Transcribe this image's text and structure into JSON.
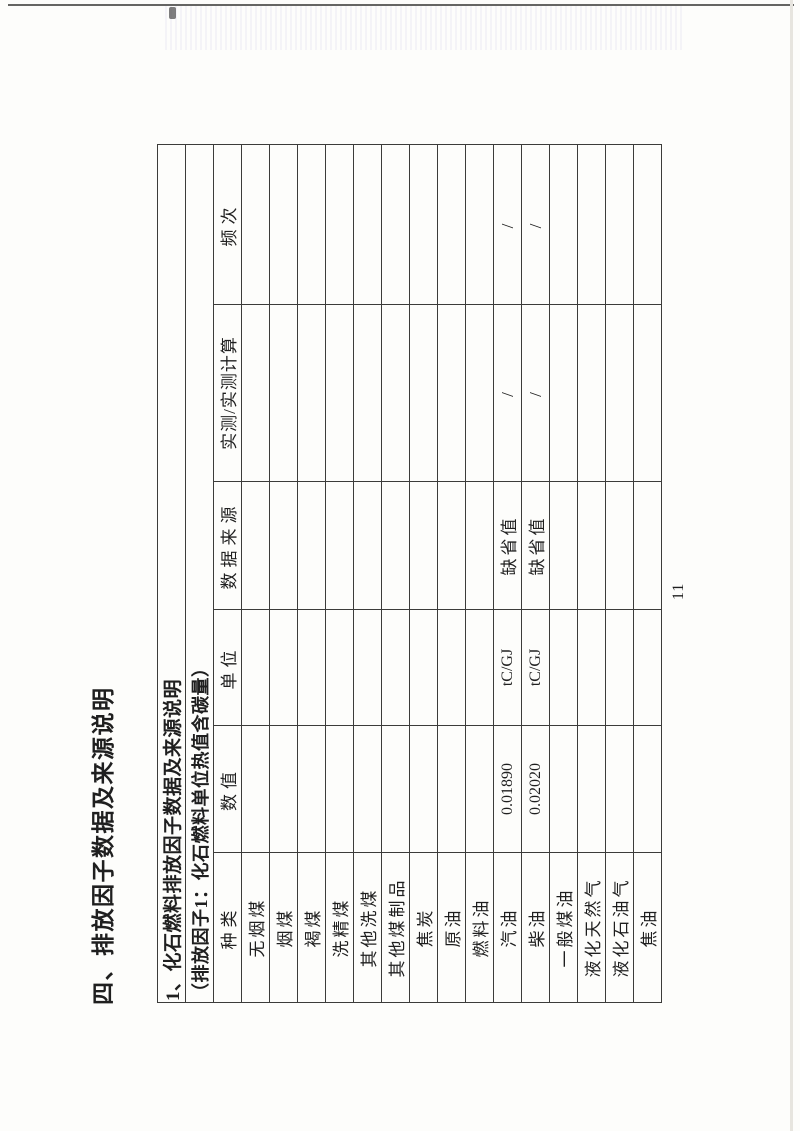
{
  "document": {
    "section_title": "四、排放因子数据及来源说明",
    "page_number": "11",
    "table": {
      "caption_line1": "1、化石燃料排放因子数据及来源说明",
      "caption_line2": "（排放因子1：化石燃料单位热值含碳量）",
      "headers": [
        "种类",
        "数值",
        "单位",
        "数据来源",
        "实测/实测计算",
        "频次"
      ],
      "rows": [
        {
          "type": "无烟煤",
          "value": "",
          "unit": "",
          "source": "",
          "measured": "",
          "frequency": ""
        },
        {
          "type": "烟煤",
          "value": "",
          "unit": "",
          "source": "",
          "measured": "",
          "frequency": ""
        },
        {
          "type": "褐煤",
          "value": "",
          "unit": "",
          "source": "",
          "measured": "",
          "frequency": ""
        },
        {
          "type": "洗精煤",
          "value": "",
          "unit": "",
          "source": "",
          "measured": "",
          "frequency": ""
        },
        {
          "type": "其他洗煤",
          "value": "",
          "unit": "",
          "source": "",
          "measured": "",
          "frequency": ""
        },
        {
          "type": "其他煤制品",
          "value": "",
          "unit": "",
          "source": "",
          "measured": "",
          "frequency": ""
        },
        {
          "type": "焦炭",
          "value": "",
          "unit": "",
          "source": "",
          "measured": "",
          "frequency": ""
        },
        {
          "type": "原油",
          "value": "",
          "unit": "",
          "source": "",
          "measured": "",
          "frequency": ""
        },
        {
          "type": "燃料油",
          "value": "",
          "unit": "",
          "source": "",
          "measured": "",
          "frequency": ""
        },
        {
          "type": "汽油",
          "value": "0.01890",
          "unit": "tC/GJ",
          "source": "缺省值",
          "measured": "/",
          "frequency": "/"
        },
        {
          "type": "柴油",
          "value": "0.02020",
          "unit": "tC/GJ",
          "source": "缺省值",
          "measured": "/",
          "frequency": "/"
        },
        {
          "type": "一般煤油",
          "value": "",
          "unit": "",
          "source": "",
          "measured": "",
          "frequency": ""
        },
        {
          "type": "液化天然气",
          "value": "",
          "unit": "",
          "source": "",
          "measured": "",
          "frequency": ""
        },
        {
          "type": "液化石油气",
          "value": "",
          "unit": "",
          "source": "",
          "measured": "",
          "frequency": ""
        },
        {
          "type": "焦油",
          "value": "",
          "unit": "",
          "source": "",
          "measured": "",
          "frequency": ""
        }
      ]
    }
  }
}
